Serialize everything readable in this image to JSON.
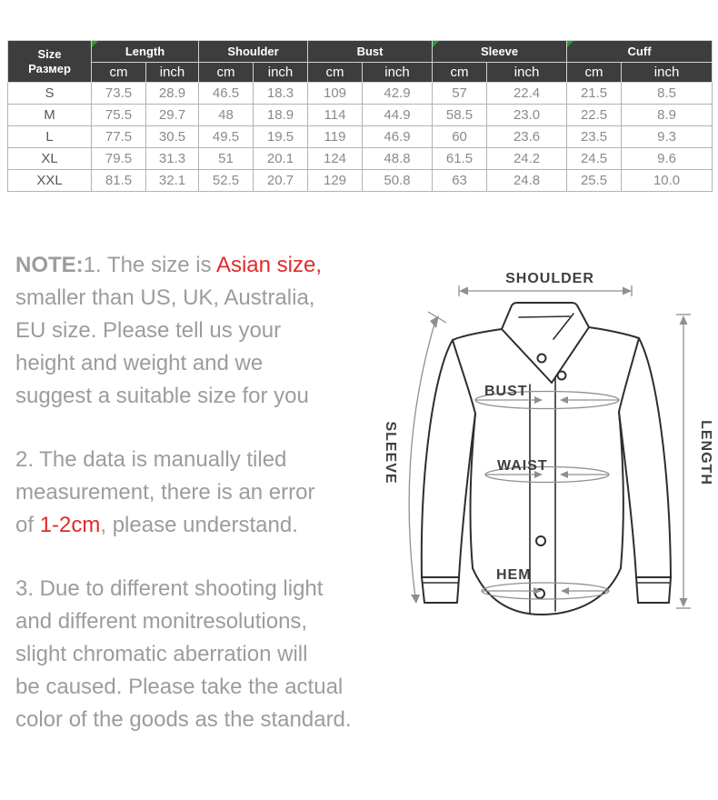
{
  "colors": {
    "header_bg": "#3d3d3d",
    "header_text": "#ffffff",
    "marker_green": "#21a121",
    "note_gray": "#9c9c9c",
    "accent_red": "#e02b2b",
    "outline_dark": "#2e2e2e",
    "measure_gray": "#8f8f8f"
  },
  "table": {
    "size_header": {
      "en": "Size",
      "ru": "Размер"
    },
    "unit_cm": "cm",
    "unit_inch": "inch",
    "groups": [
      {
        "label": "Length",
        "marker": true
      },
      {
        "label": "Shoulder",
        "marker": false
      },
      {
        "label": "Bust",
        "marker": false
      },
      {
        "label": "Sleeve",
        "marker": true
      },
      {
        "label": "Cuff",
        "marker": true
      }
    ],
    "rows": [
      {
        "size": "S",
        "values": [
          "73.5",
          "28.9",
          "46.5",
          "18.3",
          "109",
          "42.9",
          "57",
          "22.4",
          "21.5",
          "8.5"
        ]
      },
      {
        "size": "M",
        "values": [
          "75.5",
          "29.7",
          "48",
          "18.9",
          "114",
          "44.9",
          "58.5",
          "23.0",
          "22.5",
          "8.9"
        ]
      },
      {
        "size": "L",
        "values": [
          "77.5",
          "30.5",
          "49.5",
          "19.5",
          "119",
          "46.9",
          "60",
          "23.6",
          "23.5",
          "9.3"
        ]
      },
      {
        "size": "XL",
        "values": [
          "79.5",
          "31.3",
          "51",
          "20.1",
          "124",
          "48.8",
          "61.5",
          "24.2",
          "24.5",
          "9.6"
        ]
      },
      {
        "size": "XXL",
        "values": [
          "81.5",
          "32.1",
          "52.5",
          "20.7",
          "129",
          "50.8",
          "63",
          "24.8",
          "25.5",
          "10.0"
        ]
      }
    ]
  },
  "notes": {
    "paragraphs": [
      {
        "lines": [
          [
            {
              "t": "NOTE:",
              "bold": true
            },
            {
              "t": "1. The size is "
            },
            {
              "t": "Asian size,",
              "red": true
            }
          ],
          [
            {
              "t": "smaller than US, UK, Australia,"
            }
          ],
          [
            {
              "t": "EU size. Please tell us your"
            }
          ],
          [
            {
              "t": "height and weight and we"
            }
          ],
          [
            {
              "t": "suggest a suitable size for you"
            }
          ]
        ]
      },
      {
        "lines": [
          [
            {
              "t": "2. The data is manually tiled"
            }
          ],
          [
            {
              "t": "measurement, there is an error"
            }
          ],
          [
            {
              "t": "of "
            },
            {
              "t": "1-2cm",
              "red": true
            },
            {
              "t": ", please understand."
            }
          ]
        ]
      },
      {
        "lines": [
          [
            {
              "t": "3. Due to different shooting light"
            }
          ],
          [
            {
              "t": "and different monitresolutions,"
            }
          ],
          [
            {
              "t": "slight chromatic aberration will"
            }
          ],
          [
            {
              "t": "be caused. Please take the actual"
            }
          ],
          [
            {
              "t": "color of the goods as the standard."
            }
          ]
        ]
      }
    ]
  },
  "diagram": {
    "labels": {
      "shoulder": "SHOULDER",
      "bust": "BUST",
      "waist": "WAIST",
      "hem": "HEM",
      "sleeve": "SLEEVE",
      "length": "LENGTH"
    }
  }
}
